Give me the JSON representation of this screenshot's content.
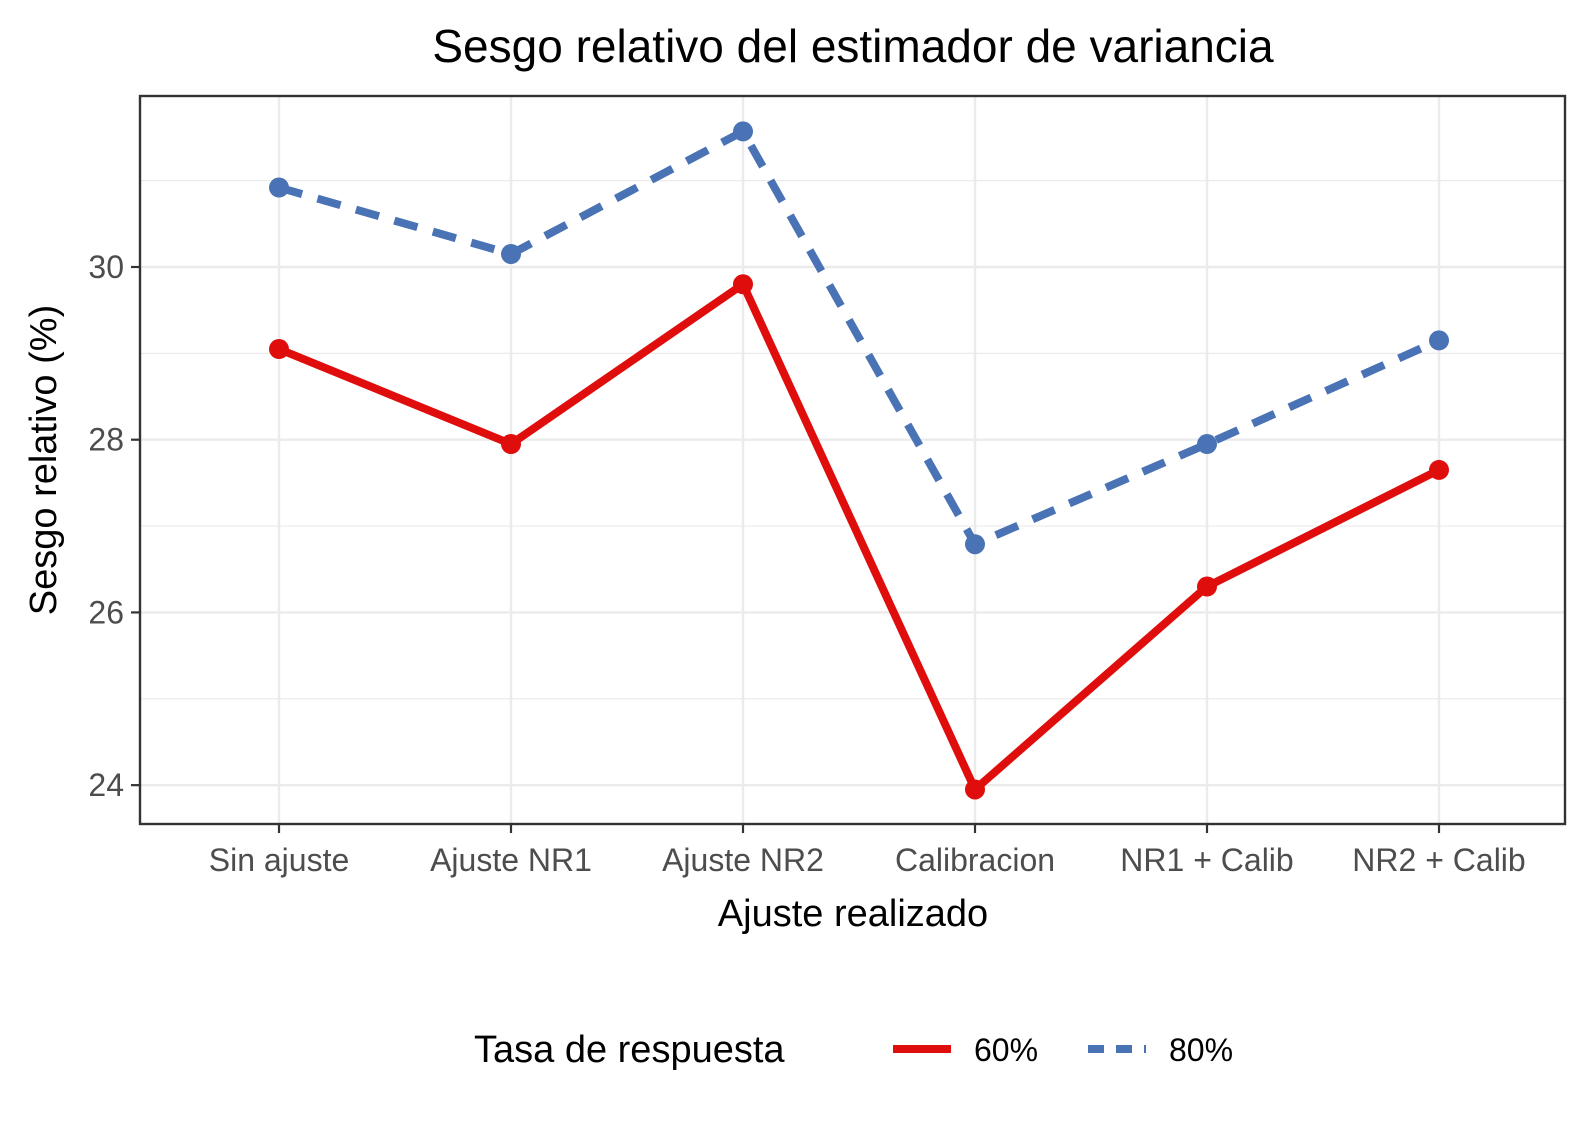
{
  "chart_data": {
    "type": "line",
    "title": "Sesgo relativo del estimador de variancia",
    "xlabel": "Ajuste realizado",
    "ylabel": "Sesgo relativo (%)",
    "categories": [
      "Sin ajuste",
      "Ajuste NR1",
      "Ajuste NR2",
      "Calibracion",
      "NR1 + Calib",
      "NR2 + Calib"
    ],
    "ylim": [
      23.55,
      31.98
    ],
    "yticks": [
      24,
      26,
      28,
      30
    ],
    "yminor": [
      25,
      27,
      29,
      31
    ],
    "grid": true,
    "legend": {
      "title": "Tasa de respuesta",
      "position": "bottom"
    },
    "series": [
      {
        "name": "60%",
        "color": "#e00d0d",
        "dash": "solid",
        "values": [
          29.05,
          27.95,
          29.8,
          23.95,
          26.3,
          27.65
        ]
      },
      {
        "name": "80%",
        "color": "#4a73b5",
        "dash": "dashed",
        "values": [
          30.92,
          30.15,
          31.57,
          26.79,
          27.95,
          29.15
        ]
      }
    ]
  }
}
